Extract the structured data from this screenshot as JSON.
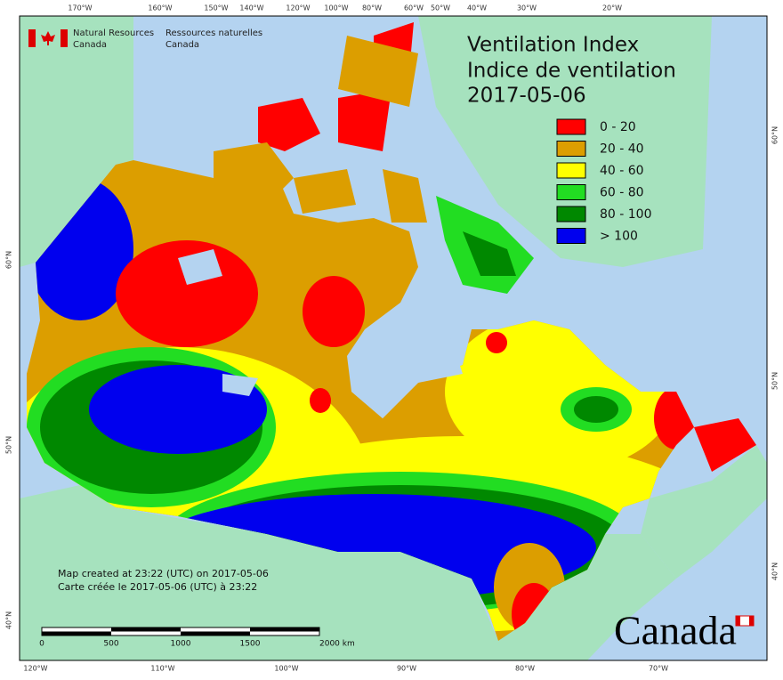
{
  "header": {
    "agency_en": [
      "Natural Resources",
      "Canada"
    ],
    "agency_fr": [
      "Ressources naturelles",
      "Canada"
    ]
  },
  "title": {
    "line1": "Ventilation Index",
    "line2": "Indice de ventilation",
    "date": "2017-05-06"
  },
  "legend": {
    "items": [
      {
        "label": "0 - 20",
        "color": "#ff0000"
      },
      {
        "label": "20 - 40",
        "color": "#dc9e00"
      },
      {
        "label": "40 - 60",
        "color": "#ffff00"
      },
      {
        "label": "60 - 80",
        "color": "#22dd22"
      },
      {
        "label": "80 - 100",
        "color": "#008800"
      },
      {
        "label": "> 100",
        "color": "#0000ee"
      }
    ]
  },
  "graticule": {
    "top": [
      "170°W",
      "160°W",
      "150°W",
      "140°W",
      "120°W",
      "100°W",
      "80°W",
      "60°W",
      "50°W",
      "40°W",
      "30°W",
      "20°W"
    ],
    "bottom": [
      "120°W",
      "110°W",
      "100°W",
      "90°W",
      "80°W",
      "70°W"
    ],
    "left": [
      "60°N",
      "50°N",
      "40°N"
    ],
    "right": [
      "60°N",
      "50°N",
      "40°N"
    ]
  },
  "notes": [
    "Map created at 23:22 (UTC) on 2017-05-06",
    "Carte créée le 2017-05-06 (UTC) à 23:22"
  ],
  "scale_bar": [
    "0",
    "500",
    "1000",
    "1500",
    "2000  km"
  ],
  "wordmark": "Canada"
}
